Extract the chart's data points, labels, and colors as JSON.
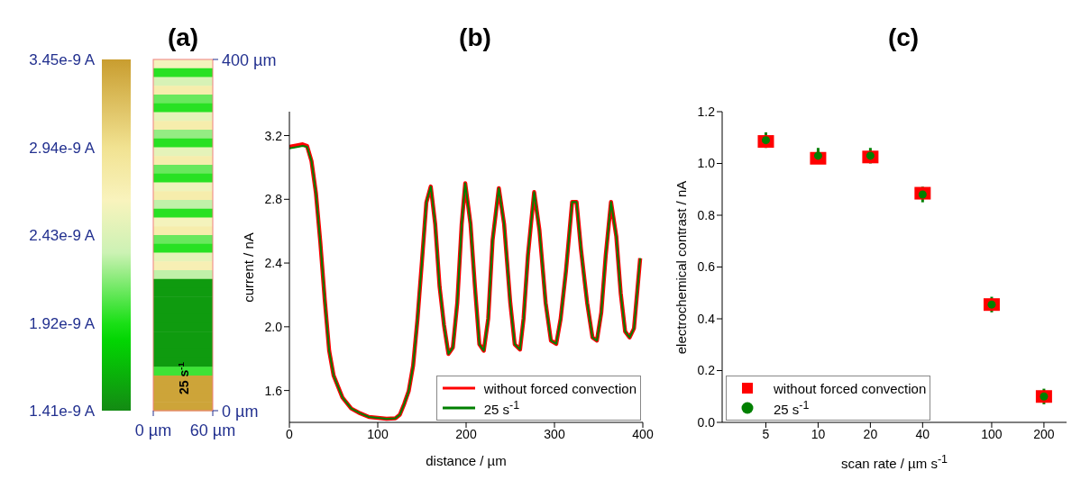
{
  "chart_data": [
    {
      "type": "heatmap",
      "title": "(a)",
      "cells": [
        [
          2.6e-09
        ],
        [
          1.95e-09
        ],
        [
          2.4e-09
        ],
        [
          2.75e-09
        ],
        [
          2.1e-09
        ],
        [
          1.95e-09
        ],
        [
          2.5e-09
        ],
        [
          2.75e-09
        ],
        [
          2.2e-09
        ],
        [
          1.95e-09
        ],
        [
          2.5e-09
        ],
        [
          2.75e-09
        ],
        [
          2.1e-09
        ],
        [
          1.95e-09
        ],
        [
          2.55e-09
        ],
        [
          2.75e-09
        ],
        [
          2.3e-09
        ],
        [
          1.95e-09
        ],
        [
          2.6e-09
        ],
        [
          2.75e-09
        ],
        [
          2.1e-09
        ],
        [
          1.95e-09
        ],
        [
          2.5e-09
        ],
        [
          2.7e-09
        ],
        [
          2.3e-09
        ],
        [
          1.5e-09
        ],
        [
          1.5e-09
        ],
        [
          1.5e-09
        ],
        [
          1.5e-09
        ],
        [
          1.5e-09
        ],
        [
          1.5e-09
        ],
        [
          1.5e-09
        ],
        [
          1.5e-09
        ],
        [
          1.5e-09
        ],
        [
          1.5e-09
        ],
        [
          2e-09
        ],
        [
          3.4e-09
        ],
        [
          3.4e-09
        ],
        [
          3.4e-09
        ],
        [
          3.4e-09
        ]
      ],
      "clim": [
        1.41e-09,
        3.45e-09
      ],
      "cticks": [
        {
          "value": 1.41e-09,
          "label": "1.41e-9 A"
        },
        {
          "value": 1.92e-09,
          "label": "1.92e-9 A"
        },
        {
          "value": 2.43e-09,
          "label": "2.43e-9 A"
        },
        {
          "value": 2.94e-09,
          "label": "2.94e-9 A"
        },
        {
          "value": 3.45e-09,
          "label": "3.45e-9 A"
        }
      ],
      "xlim": [
        0,
        60
      ],
      "xticks": [
        {
          "value": 0,
          "label": "0 µm"
        },
        {
          "value": 60,
          "label": "60 µm"
        }
      ],
      "ylim": [
        0,
        400
      ],
      "yticks": [
        {
          "value": 0,
          "label": "0 µm"
        },
        {
          "value": 400,
          "label": "400 µm"
        }
      ],
      "annotations": [
        "25 s$^{-1}$"
      ]
    },
    {
      "type": "line",
      "title": "(b)",
      "xlabel": "distance / µm",
      "ylabel": "current / nA",
      "x": [
        0,
        10,
        15,
        20,
        25,
        30,
        35,
        40,
        45,
        50,
        60,
        70,
        80,
        90,
        100,
        110,
        120,
        125,
        130,
        135,
        140,
        145,
        150,
        155,
        160,
        165,
        170,
        175,
        180,
        185,
        190,
        195,
        199,
        205,
        210,
        215,
        220,
        225,
        230,
        237,
        243,
        250,
        255,
        261,
        265,
        270,
        277,
        283,
        290,
        296,
        302,
        307,
        313,
        320,
        325,
        330,
        337,
        343,
        348,
        353,
        358,
        364,
        370,
        375,
        380,
        385,
        390,
        397
      ],
      "series": [
        {
          "name": "without forced convection",
          "color": "#ff0000",
          "values": [
            3.13,
            3.14,
            3.145,
            3.135,
            3.04,
            2.84,
            2.53,
            2.17,
            1.85,
            1.695,
            1.556,
            1.487,
            1.457,
            1.434,
            1.428,
            1.422,
            1.426,
            1.448,
            1.517,
            1.596,
            1.755,
            2.05,
            2.41,
            2.78,
            2.88,
            2.645,
            2.25,
            2.01,
            1.83,
            1.87,
            2.15,
            2.645,
            2.9,
            2.645,
            2.25,
            1.89,
            1.85,
            2.05,
            2.545,
            2.87,
            2.645,
            2.15,
            1.89,
            1.857,
            2.05,
            2.45,
            2.845,
            2.606,
            2.15,
            1.913,
            1.893,
            2.05,
            2.35,
            2.784,
            2.784,
            2.487,
            2.15,
            1.933,
            1.913,
            2.09,
            2.447,
            2.784,
            2.566,
            2.21,
            1.97,
            1.933,
            1.99,
            2.43
          ]
        },
        {
          "name": "25 s$^{-1}$",
          "color": "#008000",
          "values": [
            3.12,
            3.13,
            3.135,
            3.13,
            3.04,
            2.84,
            2.53,
            2.17,
            1.85,
            1.695,
            1.556,
            1.487,
            1.457,
            1.434,
            1.428,
            1.422,
            1.426,
            1.448,
            1.517,
            1.596,
            1.755,
            2.05,
            2.41,
            2.78,
            2.88,
            2.645,
            2.25,
            2.01,
            1.83,
            1.87,
            2.15,
            2.645,
            2.9,
            2.645,
            2.25,
            1.89,
            1.85,
            2.05,
            2.545,
            2.87,
            2.645,
            2.15,
            1.89,
            1.857,
            2.05,
            2.45,
            2.845,
            2.606,
            2.15,
            1.913,
            1.893,
            2.05,
            2.35,
            2.784,
            2.784,
            2.487,
            2.15,
            1.933,
            1.913,
            2.09,
            2.447,
            2.784,
            2.566,
            2.21,
            1.97,
            1.933,
            1.99,
            2.43
          ]
        }
      ],
      "xlim": [
        0,
        400
      ],
      "xticks": [
        0,
        100,
        200,
        300,
        400
      ],
      "ylim": [
        1.4,
        3.35
      ],
      "yticks": [
        1.6,
        {
          "value": 2,
          "label": "2.0"
        },
        2.4,
        2.8,
        3.2
      ],
      "legend": "bottom right",
      "line_style": "solid",
      "marker": "none"
    },
    {
      "type": "scatter",
      "title": "(c)",
      "xlabel": "scan rate / µm s$^{-1}$",
      "ylabel": "electrochemical contrast / nA",
      "x": [
        5,
        10,
        20,
        40,
        100,
        200
      ],
      "series": [
        {
          "name": "without forced convection",
          "color": "#ff0000",
          "marker": "square",
          "values": [
            1.085,
            1.02,
            1.025,
            0.885,
            0.455,
            0.1
          ]
        },
        {
          "name": "25 s$^{-1}$",
          "color": "#008000",
          "marker": "circle",
          "values": [
            1.09,
            1.03,
            1.03,
            0.88,
            0.455,
            0.1
          ],
          "errors": [
            0.03,
            0.03,
            0.03,
            0.03,
            0.03,
            0.03
          ]
        }
      ],
      "log": "x",
      "xlim": [
        2.8,
        270
      ],
      "xticks": [
        5,
        10,
        20,
        40,
        100,
        200
      ],
      "ylim": [
        0,
        1.2
      ],
      "yticks": [
        {
          "value": 0,
          "label": "0.0"
        },
        0.2,
        0.4,
        0.6,
        0.8,
        {
          "value": 1,
          "label": "1.0"
        },
        1.2
      ],
      "legend": "bottom left"
    }
  ]
}
